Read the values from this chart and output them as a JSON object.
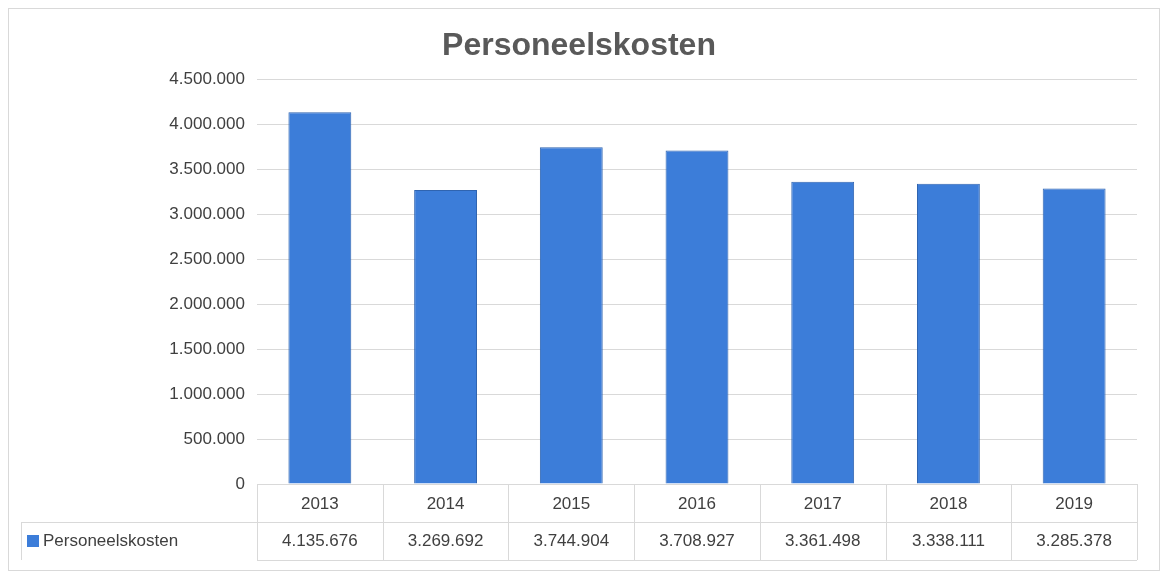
{
  "chart_data": {
    "type": "bar",
    "title": "Personeelskosten",
    "categories": [
      "2013",
      "2014",
      "2015",
      "2016",
      "2017",
      "2018",
      "2019"
    ],
    "series": [
      {
        "name": "Personeelskosten",
        "color": "#3c7dd9",
        "values": [
          4135676,
          3269692,
          3744904,
          3708927,
          3361498,
          3338111,
          3285378
        ],
        "value_labels": [
          "4.135.676",
          "3.269.692",
          "3.744.904",
          "3.708.927",
          "3.361.498",
          "3.338.111",
          "3.285.378"
        ]
      }
    ],
    "ylim": [
      0,
      4500000
    ],
    "yticks": [
      {
        "value": 0,
        "label": "0"
      },
      {
        "value": 500000,
        "label": "500.000"
      },
      {
        "value": 1000000,
        "label": "1.000.000"
      },
      {
        "value": 1500000,
        "label": "1.500.000"
      },
      {
        "value": 2000000,
        "label": "2.000.000"
      },
      {
        "value": 2500000,
        "label": "2.500.000"
      },
      {
        "value": 3000000,
        "label": "3.000.000"
      },
      {
        "value": 3500000,
        "label": "3.500.000"
      },
      {
        "value": 4000000,
        "label": "4.000.000"
      },
      {
        "value": 4500000,
        "label": "4.500.000"
      }
    ],
    "grid": "y",
    "legend": "bottom"
  }
}
